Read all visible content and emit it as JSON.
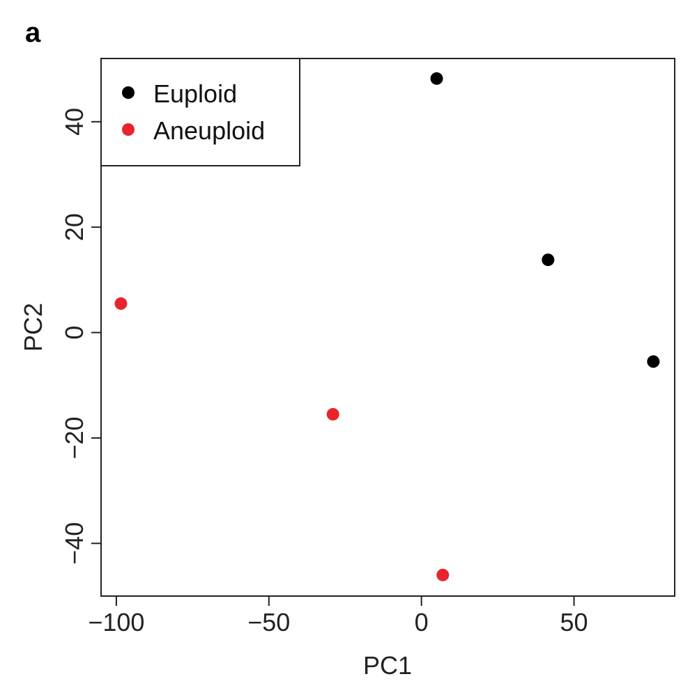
{
  "panel_label": "a",
  "colors": {
    "euploid": "#000000",
    "aneuploid": "#e8252a",
    "axis": "#222222"
  },
  "chart_data": {
    "type": "scatter",
    "xlabel": "PC1",
    "ylabel": "PC2",
    "xlim": [
      -105,
      83
    ],
    "ylim": [
      -50,
      52
    ],
    "xticks": [
      -100,
      -50,
      0,
      50
    ],
    "yticks": [
      -40,
      -20,
      0,
      20,
      40
    ],
    "x_tick_labels": [
      "−100",
      "−50",
      "0",
      "50"
    ],
    "y_tick_labels": [
      "−40",
      "−20",
      "0",
      "20",
      "40"
    ],
    "legend_position": "top-left",
    "grid": false,
    "series": [
      {
        "name": "Euploid",
        "color": "#000000",
        "points": [
          [
            5,
            48.2
          ],
          [
            41.5,
            13.8
          ],
          [
            76,
            -5.5
          ]
        ]
      },
      {
        "name": "Aneuploid",
        "color": "#e8252a",
        "points": [
          [
            -98.5,
            5.5
          ],
          [
            -29,
            -15.5
          ],
          [
            7,
            -46
          ]
        ]
      }
    ]
  }
}
